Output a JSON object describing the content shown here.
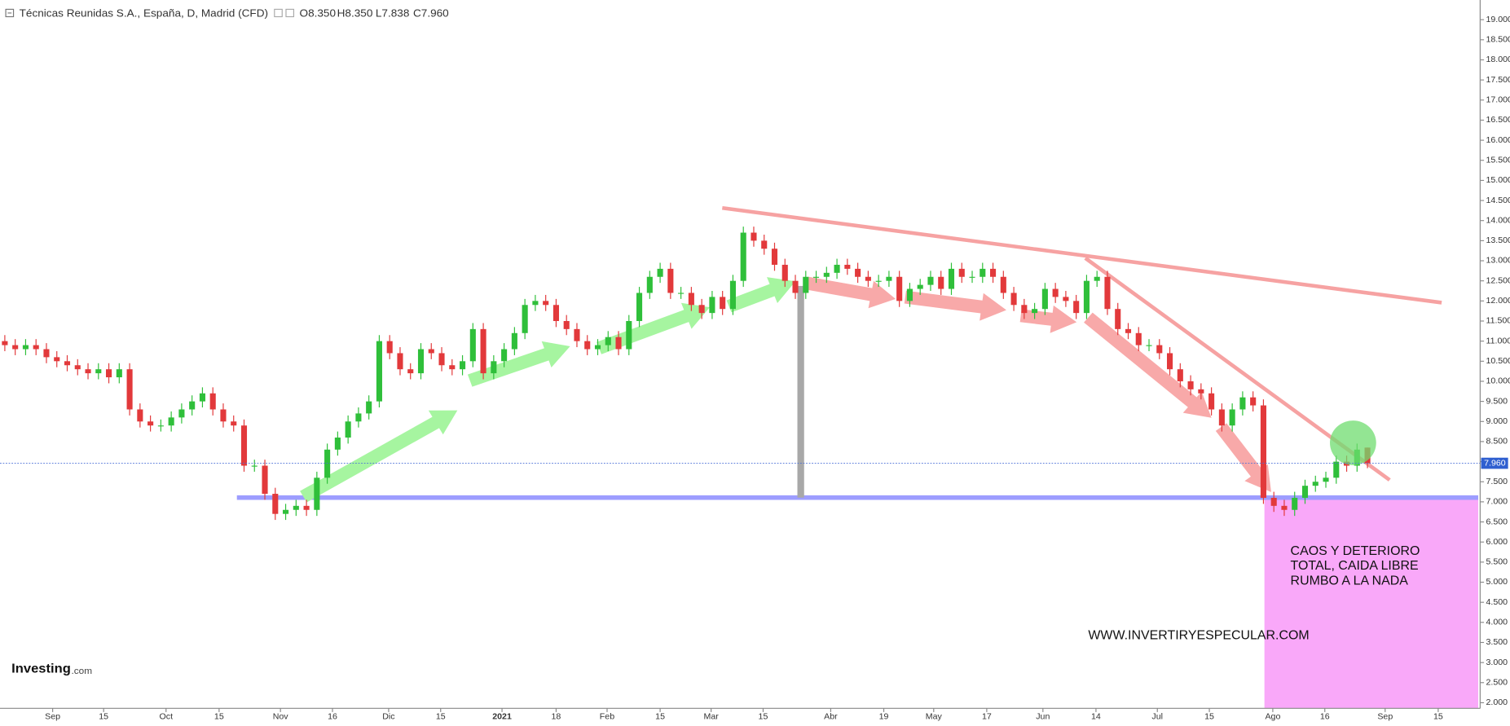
{
  "chart_data": {
    "type": "candlestick",
    "title": "Técnicas Reunidas S.A., España, D, Madrid (CFD)",
    "ohlc_header": [
      "O8.350",
      "H8.350",
      "L7.838",
      "C7.960"
    ],
    "up_color": "#2fbf3a",
    "down_color": "#e2393b",
    "xlim": [
      0,
      141
    ],
    "xticks": [
      {
        "value": 4.6,
        "label": "Sep"
      },
      {
        "value": 9.5,
        "label": "15"
      },
      {
        "value": 15.5,
        "label": "Oct"
      },
      {
        "value": 20.6,
        "label": "15"
      },
      {
        "value": 26.5,
        "label": "Nov"
      },
      {
        "value": 31.5,
        "label": "16"
      },
      {
        "value": 36.9,
        "label": "Dic"
      },
      {
        "value": 41.9,
        "label": "15"
      },
      {
        "value": 47.8,
        "label": "2021"
      },
      {
        "value": 53,
        "label": "18"
      },
      {
        "value": 57.9,
        "label": "Feb"
      },
      {
        "value": 63,
        "label": "15"
      },
      {
        "value": 67.9,
        "label": "Mar"
      },
      {
        "value": 72.9,
        "label": "15"
      },
      {
        "value": 79.4,
        "label": "Abr"
      },
      {
        "value": 84.5,
        "label": "19"
      },
      {
        "value": 89.3,
        "label": "May"
      },
      {
        "value": 94.4,
        "label": "17"
      },
      {
        "value": 99.8,
        "label": "Jun"
      },
      {
        "value": 104.9,
        "label": "14"
      },
      {
        "value": 110.8,
        "label": "Jul"
      },
      {
        "value": 115.8,
        "label": "15"
      },
      {
        "value": 121.9,
        "label": "Ago"
      },
      {
        "value": 126.9,
        "label": "16"
      },
      {
        "value": 132.7,
        "label": "Sep"
      },
      {
        "value": 137.8,
        "label": "15"
      }
    ],
    "ylim": [
      1.86,
      19.49
    ],
    "yticks": [
      {
        "value": 2,
        "label": "2.000"
      },
      {
        "value": 2.5,
        "label": "2.500"
      },
      {
        "value": 3,
        "label": "3.000"
      },
      {
        "value": 3.5,
        "label": "3.500"
      },
      {
        "value": 4,
        "label": "4.000"
      },
      {
        "value": 4.5,
        "label": "4.500"
      },
      {
        "value": 5,
        "label": "5.000"
      },
      {
        "value": 5.5,
        "label": "5.500"
      },
      {
        "value": 6,
        "label": "6.000"
      },
      {
        "value": 6.5,
        "label": "6.500"
      },
      {
        "value": 7,
        "label": "7.000"
      },
      {
        "value": 7.5,
        "label": "7.500"
      },
      {
        "value": 8,
        "label": "8.000"
      },
      {
        "value": 8.5,
        "label": "8.500"
      },
      {
        "value": 9,
        "label": "9.000"
      },
      {
        "value": 9.5,
        "label": "9.500"
      },
      {
        "value": 10,
        "label": "10.000"
      },
      {
        "value": 10.5,
        "label": "10.500"
      },
      {
        "value": 11,
        "label": "11.000"
      },
      {
        "value": 11.5,
        "label": "11.500"
      },
      {
        "value": 12,
        "label": "12.000"
      },
      {
        "value": 12.5,
        "label": "12.500"
      },
      {
        "value": 13,
        "label": "13.000"
      },
      {
        "value": 13.5,
        "label": "13.500"
      },
      {
        "value": 14,
        "label": "14.000"
      },
      {
        "value": 14.5,
        "label": "14.500"
      },
      {
        "value": 15,
        "label": "15.000"
      },
      {
        "value": 15.5,
        "label": "15.500"
      },
      {
        "value": 16,
        "label": "16.000"
      },
      {
        "value": 16.5,
        "label": "16.500"
      },
      {
        "value": 17,
        "label": "17.000"
      },
      {
        "value": 17.5,
        "label": "17.500"
      },
      {
        "value": 18,
        "label": "18.000"
      },
      {
        "value": 18.5,
        "label": "18.500"
      },
      {
        "value": 19,
        "label": "19.000"
      }
    ],
    "last_price": {
      "value": 7.96,
      "label": "7.960"
    },
    "open": [
      11.0,
      10.9,
      10.8,
      10.9,
      10.8,
      10.6,
      10.5,
      10.4,
      10.3,
      10.2,
      10.3,
      10.1,
      10.3,
      9.3,
      9.0,
      8.9,
      8.9,
      9.1,
      9.3,
      9.5,
      9.7,
      9.3,
      9.0,
      8.9,
      7.9,
      7.9,
      7.2,
      6.7,
      6.8,
      6.9,
      6.8,
      7.6,
      8.3,
      8.6,
      9.0,
      9.2,
      9.5,
      11.0,
      10.7,
      10.3,
      10.2,
      10.8,
      10.7,
      10.4,
      10.3,
      10.5,
      11.3,
      10.2,
      10.5,
      10.8,
      11.2,
      11.9,
      12.0,
      11.9,
      11.5,
      11.3,
      11.0,
      10.8,
      10.9,
      11.1,
      10.8,
      11.5,
      12.2,
      12.6,
      12.8,
      12.2,
      12.2,
      11.9,
      11.7,
      12.1,
      11.8,
      12.5,
      13.7,
      13.5,
      13.3,
      12.9,
      12.5,
      12.2,
      12.6,
      12.6,
      12.7,
      12.9,
      12.8,
      12.6,
      12.5,
      12.5,
      12.6,
      12.0,
      12.3,
      12.4,
      12.6,
      12.3,
      12.8,
      12.6,
      12.6,
      12.8,
      12.6,
      12.2,
      11.9,
      11.7,
      11.8,
      12.3,
      12.1,
      12.0,
      11.7,
      12.5,
      12.6,
      11.8,
      11.3,
      11.2,
      10.9,
      10.9,
      10.7,
      10.3,
      10.0,
      9.8,
      9.7,
      9.3,
      8.9,
      9.3,
      9.6,
      9.4,
      7.1,
      6.9,
      6.8,
      7.1,
      7.4,
      7.5,
      7.6,
      8.0,
      7.9,
      8.35
    ],
    "high": [
      11.15,
      11.05,
      11.05,
      11.05,
      10.95,
      10.75,
      10.65,
      10.55,
      10.45,
      10.45,
      10.45,
      10.45,
      10.45,
      9.45,
      9.15,
      9.05,
      9.25,
      9.45,
      9.65,
      9.85,
      9.85,
      9.45,
      9.15,
      9.05,
      8.05,
      8.05,
      7.35,
      6.95,
      7.05,
      7.05,
      7.75,
      8.45,
      8.75,
      9.15,
      9.35,
      9.65,
      11.15,
      11.15,
      10.85,
      10.45,
      10.95,
      10.95,
      10.85,
      10.55,
      10.65,
      11.45,
      11.45,
      10.65,
      10.95,
      11.35,
      12.05,
      12.15,
      12.15,
      12.05,
      11.65,
      11.45,
      11.15,
      11.05,
      11.25,
      11.25,
      11.65,
      12.35,
      12.75,
      12.95,
      12.95,
      12.35,
      12.35,
      12.05,
      12.25,
      12.25,
      12.65,
      13.85,
      13.85,
      13.65,
      13.45,
      13.05,
      12.65,
      12.75,
      12.75,
      12.85,
      13.05,
      13.05,
      12.95,
      12.75,
      12.65,
      12.75,
      12.75,
      12.45,
      12.55,
      12.75,
      12.75,
      12.95,
      12.95,
      12.75,
      12.95,
      12.95,
      12.75,
      12.35,
      12.05,
      11.95,
      12.45,
      12.45,
      12.25,
      12.15,
      12.65,
      12.75,
      12.75,
      11.95,
      11.45,
      11.35,
      11.05,
      11.05,
      10.85,
      10.45,
      10.15,
      9.95,
      9.85,
      9.45,
      9.45,
      9.75,
      9.75,
      9.55,
      7.25,
      7.05,
      7.25,
      7.55,
      7.65,
      7.75,
      8.15,
      8.15,
      8.45,
      8.35
    ],
    "low": [
      10.75,
      10.65,
      10.65,
      10.65,
      10.45,
      10.35,
      10.25,
      10.15,
      10.05,
      10.05,
      9.95,
      9.95,
      9.15,
      8.85,
      8.75,
      8.75,
      8.75,
      8.95,
      9.15,
      9.35,
      9.15,
      8.85,
      8.75,
      7.75,
      7.75,
      7.05,
      6.55,
      6.55,
      6.65,
      6.65,
      6.65,
      7.45,
      8.15,
      8.45,
      8.85,
      9.05,
      9.35,
      10.55,
      10.15,
      10.05,
      10.05,
      10.55,
      10.25,
      10.15,
      10.15,
      10.35,
      10.05,
      10.05,
      10.35,
      10.65,
      11.05,
      11.75,
      11.75,
      11.35,
      11.15,
      10.85,
      10.65,
      10.65,
      10.75,
      10.65,
      10.65,
      11.35,
      12.05,
      12.45,
      12.05,
      12.05,
      11.75,
      11.55,
      11.55,
      11.65,
      11.65,
      12.35,
      13.35,
      13.15,
      12.75,
      12.35,
      12.05,
      12.05,
      12.45,
      12.45,
      12.55,
      12.65,
      12.45,
      12.35,
      12.35,
      12.35,
      11.85,
      11.85,
      12.15,
      12.25,
      12.15,
      12.15,
      12.45,
      12.45,
      12.45,
      12.45,
      12.05,
      11.75,
      11.55,
      11.55,
      11.65,
      11.95,
      11.85,
      11.55,
      11.55,
      12.35,
      11.65,
      11.15,
      11.05,
      10.75,
      10.75,
      10.55,
      10.15,
      9.85,
      9.65,
      9.55,
      9.15,
      8.75,
      8.75,
      9.15,
      9.25,
      6.95,
      6.75,
      6.65,
      6.65,
      6.95,
      7.25,
      7.35,
      7.45,
      7.75,
      7.75,
      7.838
    ],
    "close": [
      10.9,
      10.8,
      10.9,
      10.8,
      10.6,
      10.5,
      10.4,
      10.3,
      10.2,
      10.3,
      10.1,
      10.3,
      9.3,
      9.0,
      8.9,
      8.9,
      9.1,
      9.3,
      9.5,
      9.7,
      9.3,
      9.0,
      8.9,
      7.9,
      7.9,
      7.2,
      6.7,
      6.8,
      6.9,
      6.8,
      7.6,
      8.3,
      8.6,
      9.0,
      9.2,
      9.5,
      11.0,
      10.7,
      10.3,
      10.2,
      10.8,
      10.7,
      10.4,
      10.3,
      10.5,
      11.3,
      10.2,
      10.5,
      10.8,
      11.2,
      11.9,
      12.0,
      11.9,
      11.5,
      11.3,
      11.0,
      10.8,
      10.9,
      11.1,
      10.8,
      11.5,
      12.2,
      12.6,
      12.8,
      12.2,
      12.2,
      11.9,
      11.7,
      12.1,
      11.8,
      12.5,
      13.7,
      13.5,
      13.3,
      12.9,
      12.5,
      12.2,
      12.6,
      12.6,
      12.7,
      12.9,
      12.8,
      12.6,
      12.5,
      12.5,
      12.6,
      12.0,
      12.3,
      12.4,
      12.6,
      12.3,
      12.8,
      12.6,
      12.6,
      12.8,
      12.6,
      12.2,
      11.9,
      11.7,
      11.8,
      12.3,
      12.1,
      12.0,
      11.7,
      12.5,
      12.6,
      11.8,
      11.3,
      11.2,
      10.9,
      10.9,
      10.7,
      10.3,
      10.0,
      9.8,
      9.7,
      9.3,
      8.9,
      9.3,
      9.6,
      9.4,
      7.1,
      6.9,
      6.8,
      7.1,
      7.4,
      7.5,
      7.6,
      8.0,
      7.9,
      8.3,
      7.96
    ],
    "annotation": [
      "CAOS Y DETERIORO",
      "TOTAL, CAIDA LIBRE",
      "RUMBO A LA NADA"
    ],
    "website": "WWW.INVERTIRYESPECULAR.COM",
    "logo": [
      "Investing",
      ".com"
    ]
  }
}
